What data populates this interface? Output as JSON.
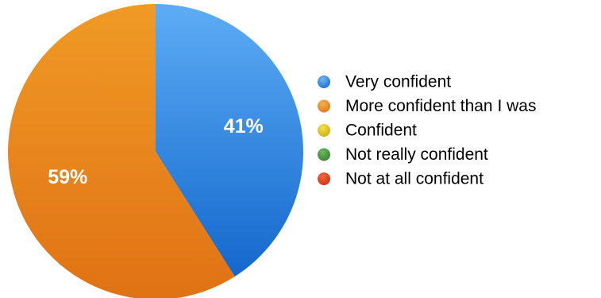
{
  "chart_data": {
    "type": "pie",
    "slices": [
      {
        "label": "Very confident",
        "value": 41,
        "display": "41%",
        "color": "#3d8fe6",
        "color_light": "#5cacf5",
        "color_dark": "#1468cc"
      },
      {
        "label": "More confident than I was",
        "value": 59,
        "display": "59%",
        "color": "#f0901a",
        "color_light": "#f09a26",
        "color_dark": "#e07214"
      }
    ],
    "legend": [
      {
        "label": "Very confident",
        "color": "#3d8fe6",
        "color_light": "#6fb6f7",
        "color_dark": "#1a6fd1"
      },
      {
        "label": "More confident than I was",
        "color": "#f0901a",
        "color_light": "#f6b055",
        "color_dark": "#e07a14"
      },
      {
        "label": "Confident",
        "color": "#e8c81a",
        "color_light": "#f5df4e",
        "color_dark": "#d4ad0e"
      },
      {
        "label": "Not really confident",
        "color": "#4d9a42",
        "color_light": "#6fb862",
        "color_dark": "#3a832f"
      },
      {
        "label": "Not at all confident",
        "color": "#e8441a",
        "color_light": "#f5683f",
        "color_dark": "#cf300e"
      }
    ],
    "legend_position": "right"
  }
}
